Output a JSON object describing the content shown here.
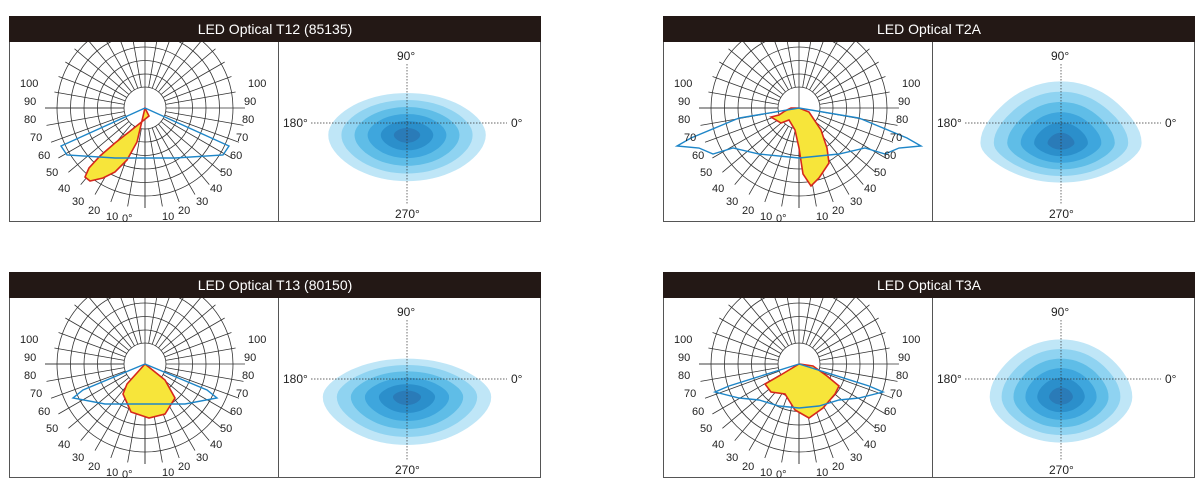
{
  "colors": {
    "title_bar": "#231815",
    "title_text": "#ffffff",
    "polar_fill": "#f7e53a",
    "polar_stroke": "#d7281c",
    "polar_blue": "#1e86c8",
    "iso_levels": [
      "#bfe6f7",
      "#8fd3f1",
      "#5fbde7",
      "#3ea6dd",
      "#2b8fcb",
      "#2a7bb8"
    ]
  },
  "polar_left_labels": [
    "100",
    "90",
    "80",
    "70",
    "60",
    "50",
    "40",
    "30",
    "20",
    "10",
    "0°"
  ],
  "polar_right_labels": [
    "10",
    "20",
    "30",
    "40",
    "50",
    "60",
    "70",
    "80",
    "90",
    "100"
  ],
  "iso_labels": {
    "top": "90°",
    "bottom": "270°",
    "left": "180°",
    "right": "0°"
  },
  "panels": [
    {
      "title": "LED Optical T12 (85135)",
      "shape": "t12"
    },
    {
      "title": "LED Optical T2A",
      "shape": "t2a"
    },
    {
      "title": "LED Optical T13 (80150)",
      "shape": "t13"
    },
    {
      "title": "LED Optical T3A",
      "shape": "t3a"
    }
  ]
}
